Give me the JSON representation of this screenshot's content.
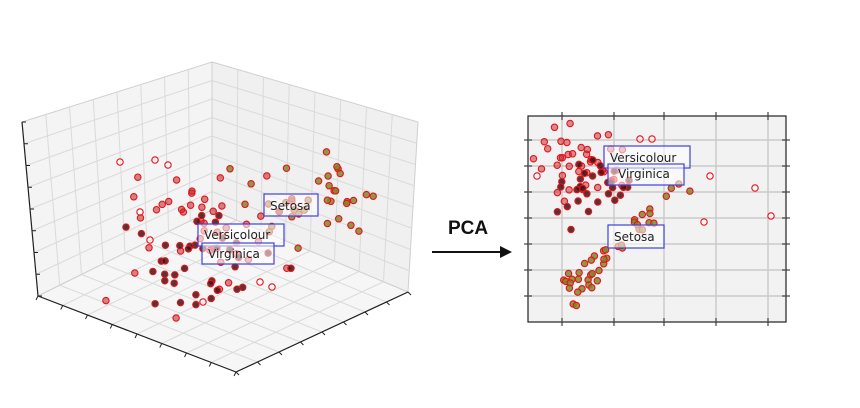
{
  "arrow": {
    "label": "PCA"
  },
  "colors": {
    "marker_edge": "#e8131a",
    "fill_setosa": "#7a8a28",
    "fill_versicolour": "#b72226",
    "fill_virginica": "#3a1414",
    "label_box_stroke": "#3f42e0",
    "grid_3d": "#dadada",
    "pane_3d": "#f3f3f3",
    "grid_2d": "#c9c9c9",
    "pane_2d": "#f2f2f2"
  },
  "plot3d": {
    "labels": [
      {
        "key": "setosa",
        "text": "Setosa"
      },
      {
        "key": "versicolour",
        "text": "Versicolour"
      },
      {
        "key": "virginica",
        "text": "Virginica"
      }
    ]
  },
  "plot2d": {
    "labels": [
      {
        "key": "versicolour",
        "text": "Versicolour"
      },
      {
        "key": "virginica",
        "text": "Virginica"
      },
      {
        "key": "setosa",
        "text": "Setosa"
      }
    ]
  }
}
